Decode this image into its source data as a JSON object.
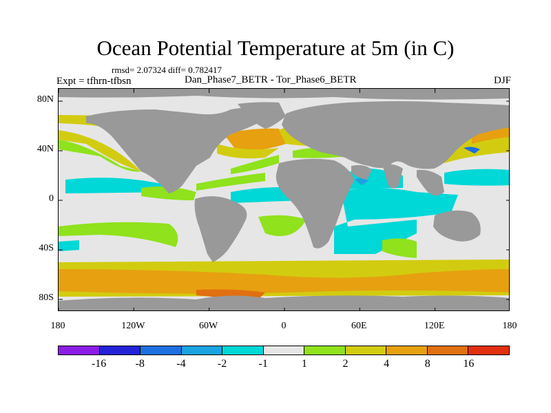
{
  "title": "Ocean Potential Temperature at 5m (in C)",
  "stats": "rmsd= 2.07324 diff= 0.782417",
  "expt": "Expt = tfhrn-tfbsn",
  "diff_label": "Dan_Phase7_BETR - Tor_Phase6_BETR",
  "season": "DJF",
  "y_ticks": [
    {
      "label": "80N",
      "lat": 80
    },
    {
      "label": "40N",
      "lat": 40
    },
    {
      "label": "0",
      "lat": 0
    },
    {
      "label": "40S",
      "lat": -40
    },
    {
      "label": "80S",
      "lat": -80
    }
  ],
  "x_ticks": [
    {
      "label": "180",
      "lon": -180
    },
    {
      "label": "120W",
      "lon": -120
    },
    {
      "label": "60W",
      "lon": -60
    },
    {
      "label": "0",
      "lon": 0
    },
    {
      "label": "60E",
      "lon": 60
    },
    {
      "label": "120E",
      "lon": 120
    },
    {
      "label": "180",
      "lon": 180
    }
  ],
  "colorbar": {
    "colors": [
      "#8c1de6",
      "#2323d8",
      "#1e6fe0",
      "#1aa3e0",
      "#00d7d7",
      "#e6e6e6",
      "#8fe21c",
      "#d2cc10",
      "#e6a010",
      "#e07010",
      "#e03010"
    ],
    "labels": [
      "-16",
      "-8",
      "-4",
      "-2",
      "-1",
      "1",
      "2",
      "4",
      "8",
      "16"
    ]
  },
  "colors": {
    "land": "#999999",
    "neutral": "#e6e6e6",
    "cyan": "#00d7d7",
    "green": "#8fe21c",
    "yellow": "#d2cc10",
    "orange": "#e6a010",
    "darkorange": "#e07010",
    "blue": "#1e6fe0"
  }
}
